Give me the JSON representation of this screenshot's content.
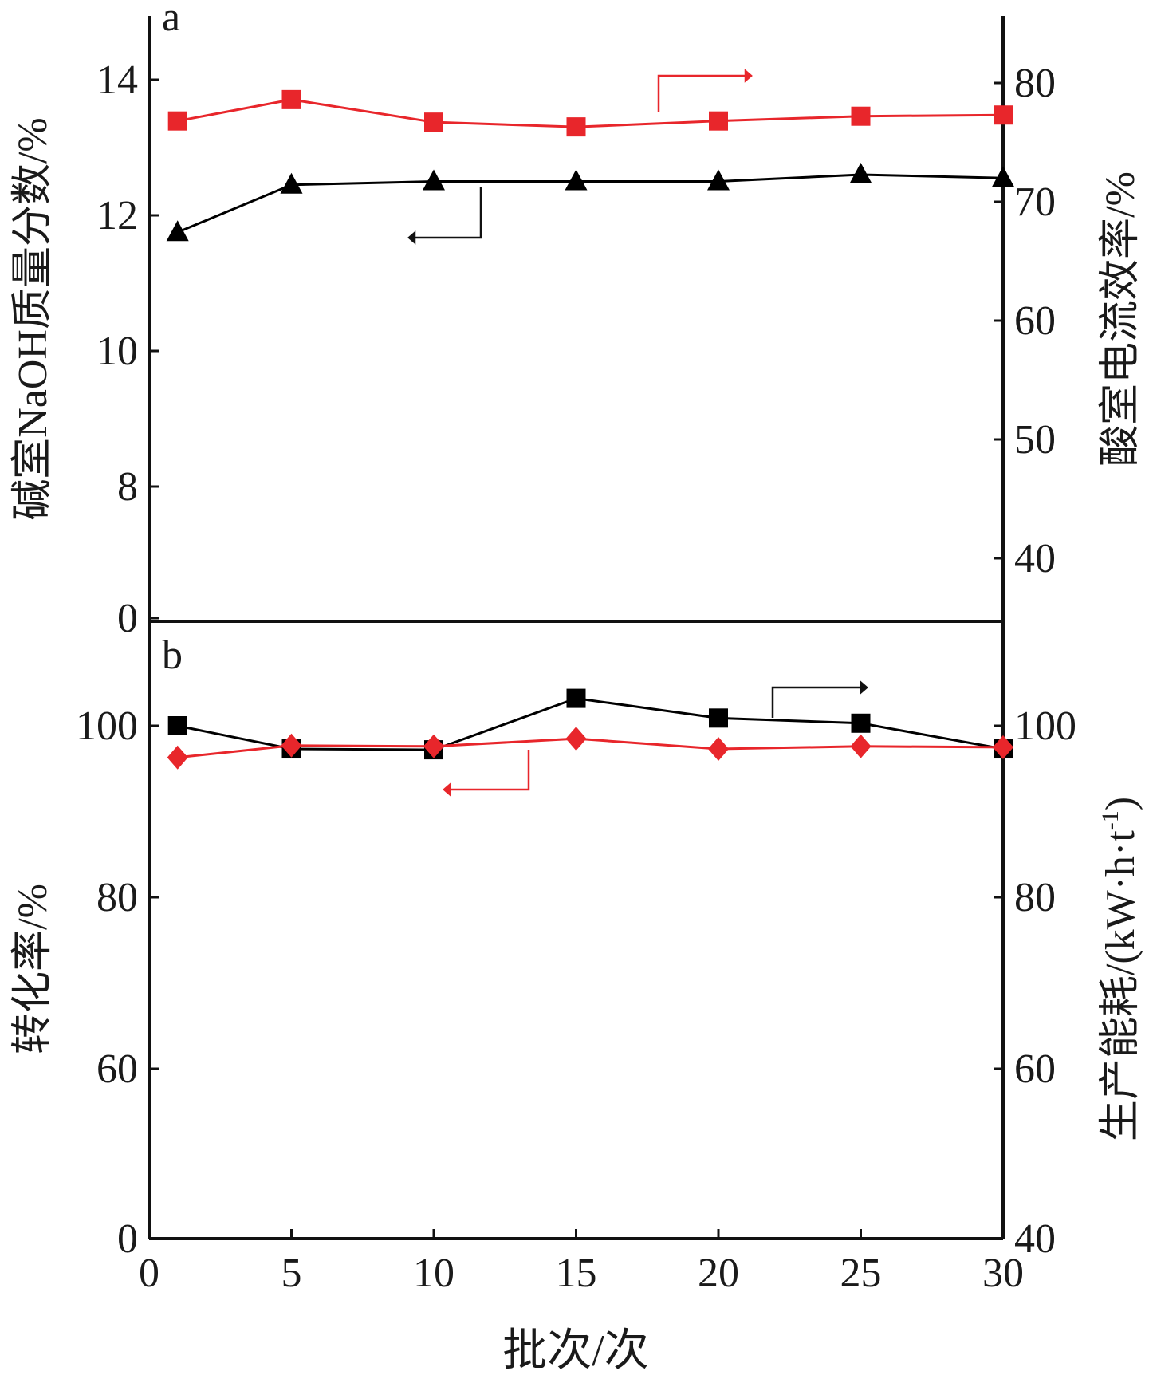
{
  "chart_data": [
    {
      "panel": "a",
      "type": "line",
      "xlim": [
        0,
        30
      ],
      "x_ticks": [
        "0",
        "5",
        "10",
        "15",
        "20",
        "25",
        "30"
      ],
      "x": [
        1,
        5,
        10,
        15,
        20,
        25,
        30
      ],
      "left_axis": {
        "label": "碱室NaOH质量分数/%",
        "tick_labels": [
          "0",
          "8",
          "10",
          "12",
          "14"
        ],
        "break": true
      },
      "right_axis": {
        "label": "酸室电流效率/%",
        "tick_labels": [
          "40",
          "50",
          "60",
          "70",
          "80"
        ]
      },
      "series": [
        {
          "axis": "left",
          "marker": "triangle",
          "color": "#000000",
          "values": [
            11.75,
            12.45,
            12.5,
            12.5,
            12.5,
            12.6,
            12.55
          ]
        },
        {
          "axis": "right",
          "marker": "square",
          "color": "#e8262b",
          "values": [
            76.8,
            78.6,
            76.7,
            76.3,
            76.8,
            77.2,
            77.3
          ]
        }
      ]
    },
    {
      "panel": "b",
      "type": "line",
      "xlim": [
        0,
        30
      ],
      "x_ticks": [
        "0",
        "5",
        "10",
        "15",
        "20",
        "25",
        "30"
      ],
      "x": [
        1,
        5,
        10,
        15,
        20,
        25,
        30
      ],
      "xlabel": "批次/次",
      "left_axis": {
        "label": "转化率/%",
        "tick_labels": [
          "0",
          "60",
          "80",
          "100"
        ],
        "break": true
      },
      "right_axis": {
        "label": "生产能耗/(kW·h·t",
        "label_superscript": "-1",
        "label_tail": ")",
        "tick_labels": [
          "40",
          "60",
          "80",
          "100"
        ],
        "break": true
      },
      "series": [
        {
          "axis": "right",
          "marker": "square",
          "color": "#000000",
          "values": [
            100.0,
            97.3,
            97.2,
            103.2,
            100.9,
            100.3,
            97.3
          ]
        },
        {
          "axis": "left",
          "marker": "diamond",
          "color": "#e8262b",
          "values": [
            96.3,
            97.7,
            97.6,
            98.5,
            97.3,
            97.6,
            97.5
          ]
        }
      ]
    }
  ]
}
